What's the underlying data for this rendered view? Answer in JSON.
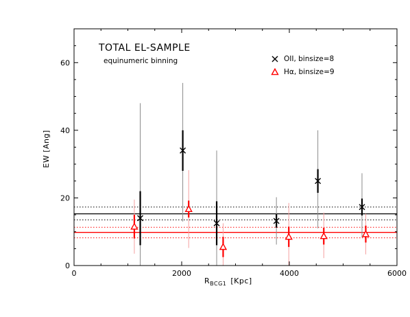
{
  "chart_data": {
    "type": "scatter",
    "title": "TOTAL EL-SAMPLE",
    "subtitle": "equinumeric binning",
    "xlabel": "R",
    "xlabel_subscript": "BCG1",
    "xlabel_unit": "[Kpc]",
    "ylabel": "EW [Ang]",
    "xlim": [
      0,
      6000
    ],
    "ylim": [
      0,
      70
    ],
    "x_ticks": [
      0,
      2000,
      4000,
      6000
    ],
    "y_ticks": [
      0,
      20,
      40,
      60
    ],
    "grid": false,
    "legend_position": "top-right",
    "series": [
      {
        "name": "OII, binsize=8",
        "marker": "cross",
        "color": "#000000",
        "x": [
          1230,
          2020,
          2650,
          3760,
          4530,
          5350
        ],
        "y": [
          14,
          34,
          12.5,
          13.2,
          25,
          17.3
        ],
        "err_inner": [
          8,
          6,
          6.5,
          2,
          3.5,
          2.5
        ],
        "err_outer_low": [
          14,
          21,
          12.5,
          7,
          14,
          9
        ],
        "err_outer_high": [
          34,
          20,
          21.5,
          7,
          15,
          10
        ],
        "mean_line": 15.3,
        "mean_band": [
          13.5,
          17.3
        ]
      },
      {
        "name": "Hα, binsize=9",
        "marker": "triangle",
        "color": "#ff0000",
        "x": [
          1120,
          2130,
          2770,
          3990,
          4640,
          5420
        ],
        "y": [
          11.5,
          16.7,
          5.5,
          8.5,
          8.7,
          9.3
        ],
        "err_inner": [
          3.5,
          2.5,
          3,
          3,
          2.5,
          2.5
        ],
        "err_outer_low": [
          8,
          11.5,
          5.5,
          8.5,
          6.5,
          6
        ],
        "err_outer_high": [
          8,
          11.5,
          7,
          10,
          7,
          6
        ],
        "mean_line": 9.8,
        "mean_band": [
          8.2,
          11.3
        ]
      }
    ]
  }
}
